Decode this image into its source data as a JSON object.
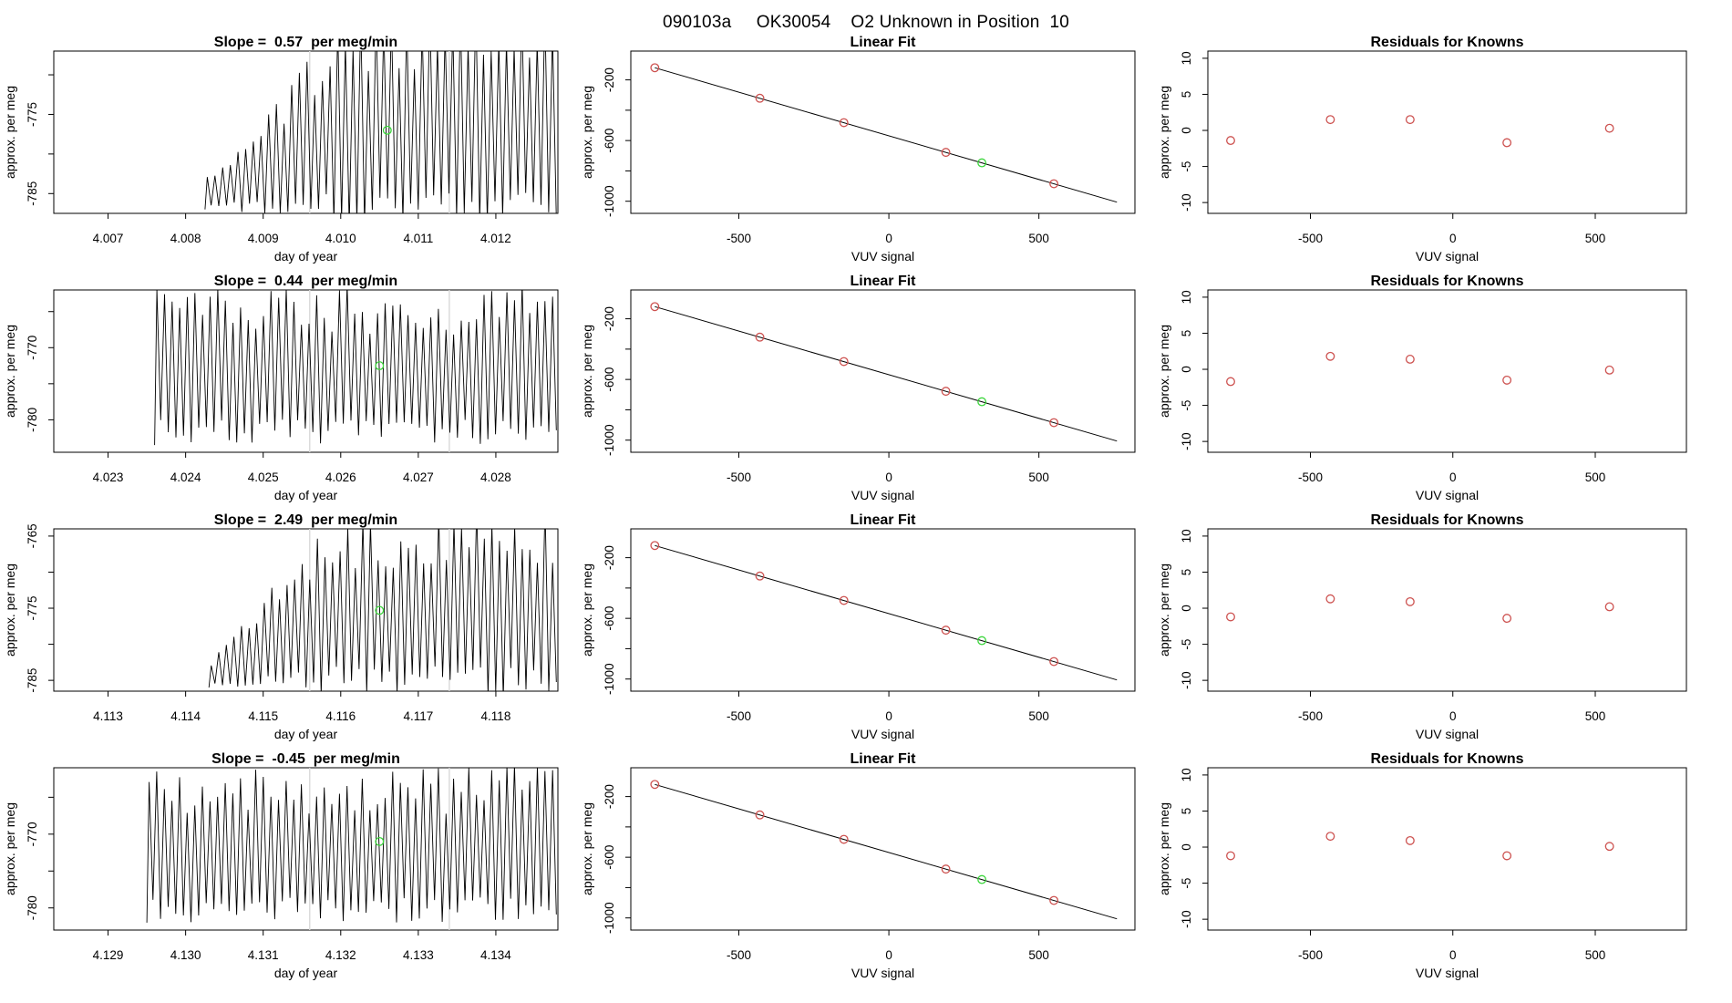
{
  "page_title": "090103a     OK30054    O2 Unknown in Position  10",
  "colors": {
    "known_point": "#cd5250",
    "unknown_point": "#3cd63c",
    "fit_line": "#000000",
    "signal_line": "#000000",
    "axis": "#000000",
    "guide_line": "#d9d9d9"
  },
  "chart_data": [
    {
      "id": "r1c1",
      "row": 1,
      "col": 1,
      "type": "line",
      "role": "timeseries",
      "title": "Slope =  0.57  per meg/min",
      "xlabel": "day of year",
      "ylabel": "approx. per meg",
      "xlim": [
        4.0063,
        4.0128
      ],
      "ylim": [
        -787.5,
        -767
      ],
      "xticks": [
        {
          "v": 4.007,
          "label": "4.007"
        },
        {
          "v": 4.008,
          "label": "4.008"
        },
        {
          "v": 4.009,
          "label": "4.009"
        },
        {
          "v": 4.01,
          "label": "4.010"
        },
        {
          "v": 4.011,
          "label": "4.011"
        },
        {
          "v": 4.012,
          "label": "4.012"
        }
      ],
      "yticks": [
        {
          "v": -785,
          "label": "-785"
        },
        {
          "v": -780,
          "label": ""
        },
        {
          "v": -775,
          "label": "-775"
        },
        {
          "v": -770,
          "label": ""
        }
      ],
      "signal": {
        "x_start": 4.00825,
        "x_end": 4.0128,
        "seed": 101,
        "envelope": [
          [
            4.00825,
            -787,
            -783
          ],
          [
            4.0088,
            -787.5,
            -778
          ],
          [
            4.0093,
            -788,
            -772
          ],
          [
            4.0097,
            -788.5,
            -766
          ],
          [
            4.0101,
            -789,
            -761
          ],
          [
            4.0128,
            -789,
            -760
          ]
        ]
      },
      "guide_lines": [
        4.0096,
        4.0114
      ],
      "unknown": {
        "x": 4.0106,
        "y": -777
      }
    },
    {
      "id": "r1c2",
      "row": 1,
      "col": 2,
      "type": "scatter",
      "role": "linear-fit",
      "title": "Linear Fit",
      "xlabel": "VUV signal",
      "ylabel": "approx. per meg",
      "xlim": [
        -860,
        820
      ],
      "ylim": [
        -1080,
        -10
      ],
      "xticks": [
        {
          "v": -500,
          "label": "-500"
        },
        {
          "v": 0,
          "label": "0"
        },
        {
          "v": 500,
          "label": "500"
        }
      ],
      "yticks": [
        {
          "v": -200,
          "label": "-200"
        },
        {
          "v": -400,
          "label": ""
        },
        {
          "v": -600,
          "label": "-600"
        },
        {
          "v": -800,
          "label": ""
        },
        {
          "v": -1000,
          "label": "-1000"
        }
      ],
      "line": {
        "x1": -780,
        "y1": -120,
        "x2": 760,
        "y2": -1006
      },
      "knowns": {
        "x": [
          -780,
          -430,
          -150,
          190,
          550
        ],
        "y": [
          -120,
          -321,
          -482,
          -678,
          -885
        ]
      },
      "unknown": {
        "x": 310,
        "y": -747
      }
    },
    {
      "id": "r1c3",
      "row": 1,
      "col": 3,
      "type": "scatter",
      "role": "residuals",
      "title": "Residuals for Knowns",
      "xlabel": "VUV signal",
      "ylabel": "approx. per meg",
      "xlim": [
        -860,
        820
      ],
      "ylim": [
        -11.5,
        11
      ],
      "xticks": [
        {
          "v": -500,
          "label": "-500"
        },
        {
          "v": 0,
          "label": "0"
        },
        {
          "v": 500,
          "label": "500"
        }
      ],
      "yticks": [
        {
          "v": -10,
          "label": "-10"
        },
        {
          "v": -5,
          "label": "-5"
        },
        {
          "v": 0,
          "label": "0"
        },
        {
          "v": 5,
          "label": "5"
        },
        {
          "v": 10,
          "label": "10"
        }
      ],
      "knowns": {
        "x": [
          -780,
          -430,
          -150,
          190,
          550
        ],
        "y": [
          -1.4,
          1.5,
          1.5,
          -1.7,
          0.3
        ]
      }
    },
    {
      "id": "r2c1",
      "row": 2,
      "col": 1,
      "type": "line",
      "role": "timeseries",
      "title": "Slope =  0.44  per meg/min",
      "xlabel": "day of year",
      "ylabel": "approx. per meg",
      "xlim": [
        4.0223,
        4.0288
      ],
      "ylim": [
        -784.5,
        -762
      ],
      "xticks": [
        {
          "v": 4.023,
          "label": "4.023"
        },
        {
          "v": 4.024,
          "label": "4.024"
        },
        {
          "v": 4.025,
          "label": "4.025"
        },
        {
          "v": 4.026,
          "label": "4.026"
        },
        {
          "v": 4.027,
          "label": "4.027"
        },
        {
          "v": 4.028,
          "label": "4.028"
        }
      ],
      "yticks": [
        {
          "v": -780,
          "label": "-780"
        },
        {
          "v": -775,
          "label": ""
        },
        {
          "v": -770,
          "label": "-770"
        },
        {
          "v": -765,
          "label": ""
        }
      ],
      "signal": {
        "x_start": 4.0236,
        "x_end": 4.0288,
        "seed": 202,
        "envelope": [
          [
            4.0236,
            -783.5,
            -761
          ],
          [
            4.0288,
            -783.5,
            -761
          ]
        ]
      },
      "guide_lines": [
        4.0256,
        4.0274
      ],
      "unknown": {
        "x": 4.0265,
        "y": -772.5
      }
    },
    {
      "id": "r2c2",
      "row": 2,
      "col": 2,
      "type": "scatter",
      "role": "linear-fit",
      "title": "Linear Fit",
      "xlabel": "VUV signal",
      "ylabel": "approx. per meg",
      "xlim": [
        -860,
        820
      ],
      "ylim": [
        -1080,
        -10
      ],
      "xticks": [
        {
          "v": -500,
          "label": "-500"
        },
        {
          "v": 0,
          "label": "0"
        },
        {
          "v": 500,
          "label": "500"
        }
      ],
      "yticks": [
        {
          "v": -200,
          "label": "-200"
        },
        {
          "v": -400,
          "label": ""
        },
        {
          "v": -600,
          "label": "-600"
        },
        {
          "v": -800,
          "label": ""
        },
        {
          "v": -1000,
          "label": "-1000"
        }
      ],
      "line": {
        "x1": -780,
        "y1": -120,
        "x2": 760,
        "y2": -1006
      },
      "knowns": {
        "x": [
          -780,
          -430,
          -150,
          190,
          550
        ],
        "y": [
          -120,
          -321,
          -482,
          -678,
          -885
        ]
      },
      "unknown": {
        "x": 310,
        "y": -747
      }
    },
    {
      "id": "r2c3",
      "row": 2,
      "col": 3,
      "type": "scatter",
      "role": "residuals",
      "title": "Residuals for Knowns",
      "xlabel": "VUV signal",
      "ylabel": "approx. per meg",
      "xlim": [
        -860,
        820
      ],
      "ylim": [
        -11.5,
        11
      ],
      "xticks": [
        {
          "v": -500,
          "label": "-500"
        },
        {
          "v": 0,
          "label": "0"
        },
        {
          "v": 500,
          "label": "500"
        }
      ],
      "yticks": [
        {
          "v": -10,
          "label": "-10"
        },
        {
          "v": -5,
          "label": "-5"
        },
        {
          "v": 0,
          "label": "0"
        },
        {
          "v": 5,
          "label": "5"
        },
        {
          "v": 10,
          "label": "10"
        }
      ],
      "knowns": {
        "x": [
          -780,
          -430,
          -150,
          190,
          550
        ],
        "y": [
          -1.7,
          1.8,
          1.4,
          -1.5,
          -0.1
        ]
      }
    },
    {
      "id": "r3c1",
      "row": 3,
      "col": 1,
      "type": "line",
      "role": "timeseries",
      "title": "Slope =  2.49  per meg/min",
      "xlabel": "day of year",
      "ylabel": "approx. per meg",
      "xlim": [
        4.1123,
        4.1188
      ],
      "ylim": [
        -786.5,
        -764
      ],
      "xticks": [
        {
          "v": 4.113,
          "label": "4.113"
        },
        {
          "v": 4.114,
          "label": "4.114"
        },
        {
          "v": 4.115,
          "label": "4.115"
        },
        {
          "v": 4.116,
          "label": "4.116"
        },
        {
          "v": 4.117,
          "label": "4.117"
        },
        {
          "v": 4.118,
          "label": "4.118"
        }
      ],
      "yticks": [
        {
          "v": -785,
          "label": "-785"
        },
        {
          "v": -780,
          "label": ""
        },
        {
          "v": -775,
          "label": "-775"
        },
        {
          "v": -770,
          "label": ""
        },
        {
          "v": -765,
          "label": "-765"
        }
      ],
      "signal": {
        "x_start": 4.1143,
        "x_end": 4.1188,
        "seed": 303,
        "envelope": [
          [
            4.1143,
            -786,
            -782
          ],
          [
            4.1148,
            -786.5,
            -776
          ],
          [
            4.1152,
            -786.5,
            -771
          ],
          [
            4.1156,
            -787,
            -766
          ],
          [
            4.116,
            -787,
            -762
          ],
          [
            4.1188,
            -787.5,
            -760
          ]
        ]
      },
      "guide_lines": [
        4.1156,
        4.1174
      ],
      "unknown": {
        "x": 4.1165,
        "y": -775.3
      }
    },
    {
      "id": "r3c2",
      "row": 3,
      "col": 2,
      "type": "scatter",
      "role": "linear-fit",
      "title": "Linear Fit",
      "xlabel": "VUV signal",
      "ylabel": "approx. per meg",
      "xlim": [
        -860,
        820
      ],
      "ylim": [
        -1080,
        -10
      ],
      "xticks": [
        {
          "v": -500,
          "label": "-500"
        },
        {
          "v": 0,
          "label": "0"
        },
        {
          "v": 500,
          "label": "500"
        }
      ],
      "yticks": [
        {
          "v": -200,
          "label": "-200"
        },
        {
          "v": -400,
          "label": ""
        },
        {
          "v": -600,
          "label": "-600"
        },
        {
          "v": -800,
          "label": ""
        },
        {
          "v": -1000,
          "label": "-1000"
        }
      ],
      "line": {
        "x1": -780,
        "y1": -120,
        "x2": 760,
        "y2": -1006
      },
      "knowns": {
        "x": [
          -780,
          -430,
          -150,
          190,
          550
        ],
        "y": [
          -120,
          -321,
          -482,
          -678,
          -885
        ]
      },
      "unknown": {
        "x": 310,
        "y": -747
      }
    },
    {
      "id": "r3c3",
      "row": 3,
      "col": 3,
      "type": "scatter",
      "role": "residuals",
      "title": "Residuals for Knowns",
      "xlabel": "VUV signal",
      "ylabel": "approx. per meg",
      "xlim": [
        -860,
        820
      ],
      "ylim": [
        -11.5,
        11
      ],
      "xticks": [
        {
          "v": -500,
          "label": "-500"
        },
        {
          "v": 0,
          "label": "0"
        },
        {
          "v": 500,
          "label": "500"
        }
      ],
      "yticks": [
        {
          "v": -10,
          "label": "-10"
        },
        {
          "v": -5,
          "label": "-5"
        },
        {
          "v": 0,
          "label": "0"
        },
        {
          "v": 5,
          "label": "5"
        },
        {
          "v": 10,
          "label": "10"
        }
      ],
      "knowns": {
        "x": [
          -780,
          -430,
          -150,
          190,
          550
        ],
        "y": [
          -1.2,
          1.3,
          0.9,
          -1.4,
          0.2
        ]
      }
    },
    {
      "id": "r4c1",
      "row": 4,
      "col": 1,
      "type": "line",
      "role": "timeseries",
      "title": "Slope =  -0.45  per meg/min",
      "xlabel": "day of year",
      "ylabel": "approx. per meg",
      "xlim": [
        4.1283,
        4.1348
      ],
      "ylim": [
        -783,
        -761
      ],
      "xticks": [
        {
          "v": 4.129,
          "label": "4.129"
        },
        {
          "v": 4.13,
          "label": "4.130"
        },
        {
          "v": 4.131,
          "label": "4.131"
        },
        {
          "v": 4.132,
          "label": "4.132"
        },
        {
          "v": 4.133,
          "label": "4.133"
        },
        {
          "v": 4.134,
          "label": "4.134"
        }
      ],
      "yticks": [
        {
          "v": -780,
          "label": "-780"
        },
        {
          "v": -775,
          "label": ""
        },
        {
          "v": -770,
          "label": "-770"
        },
        {
          "v": -765,
          "label": ""
        }
      ],
      "signal": {
        "x_start": 4.1295,
        "x_end": 4.1348,
        "seed": 404,
        "envelope": [
          [
            4.1295,
            -782,
            -760.5
          ],
          [
            4.1348,
            -782,
            -760.5
          ]
        ]
      },
      "guide_lines": [
        4.1316,
        4.1334
      ],
      "unknown": {
        "x": 4.1325,
        "y": -771
      }
    },
    {
      "id": "r4c2",
      "row": 4,
      "col": 2,
      "type": "scatter",
      "role": "linear-fit",
      "title": "Linear Fit",
      "xlabel": "VUV signal",
      "ylabel": "approx. per meg",
      "xlim": [
        -860,
        820
      ],
      "ylim": [
        -1080,
        -10
      ],
      "xticks": [
        {
          "v": -500,
          "label": "-500"
        },
        {
          "v": 0,
          "label": "0"
        },
        {
          "v": 500,
          "label": "500"
        }
      ],
      "yticks": [
        {
          "v": -200,
          "label": "-200"
        },
        {
          "v": -400,
          "label": ""
        },
        {
          "v": -600,
          "label": "-600"
        },
        {
          "v": -800,
          "label": ""
        },
        {
          "v": -1000,
          "label": "-1000"
        }
      ],
      "line": {
        "x1": -780,
        "y1": -120,
        "x2": 760,
        "y2": -1006
      },
      "knowns": {
        "x": [
          -780,
          -430,
          -150,
          190,
          550
        ],
        "y": [
          -120,
          -321,
          -482,
          -678,
          -885
        ]
      },
      "unknown": {
        "x": 310,
        "y": -747
      }
    },
    {
      "id": "r4c3",
      "row": 4,
      "col": 3,
      "type": "scatter",
      "role": "residuals",
      "title": "Residuals for Knowns",
      "xlabel": "VUV signal",
      "ylabel": "approx. per meg",
      "xlim": [
        -860,
        820
      ],
      "ylim": [
        -11.5,
        11
      ],
      "xticks": [
        {
          "v": -500,
          "label": "-500"
        },
        {
          "v": 0,
          "label": "0"
        },
        {
          "v": 500,
          "label": "500"
        }
      ],
      "yticks": [
        {
          "v": -10,
          "label": "-10"
        },
        {
          "v": -5,
          "label": "-5"
        },
        {
          "v": 0,
          "label": "0"
        },
        {
          "v": 5,
          "label": "5"
        },
        {
          "v": 10,
          "label": "10"
        }
      ],
      "knowns": {
        "x": [
          -780,
          -430,
          -150,
          190,
          550
        ],
        "y": [
          -1.2,
          1.5,
          0.9,
          -1.2,
          0.1
        ]
      }
    }
  ]
}
